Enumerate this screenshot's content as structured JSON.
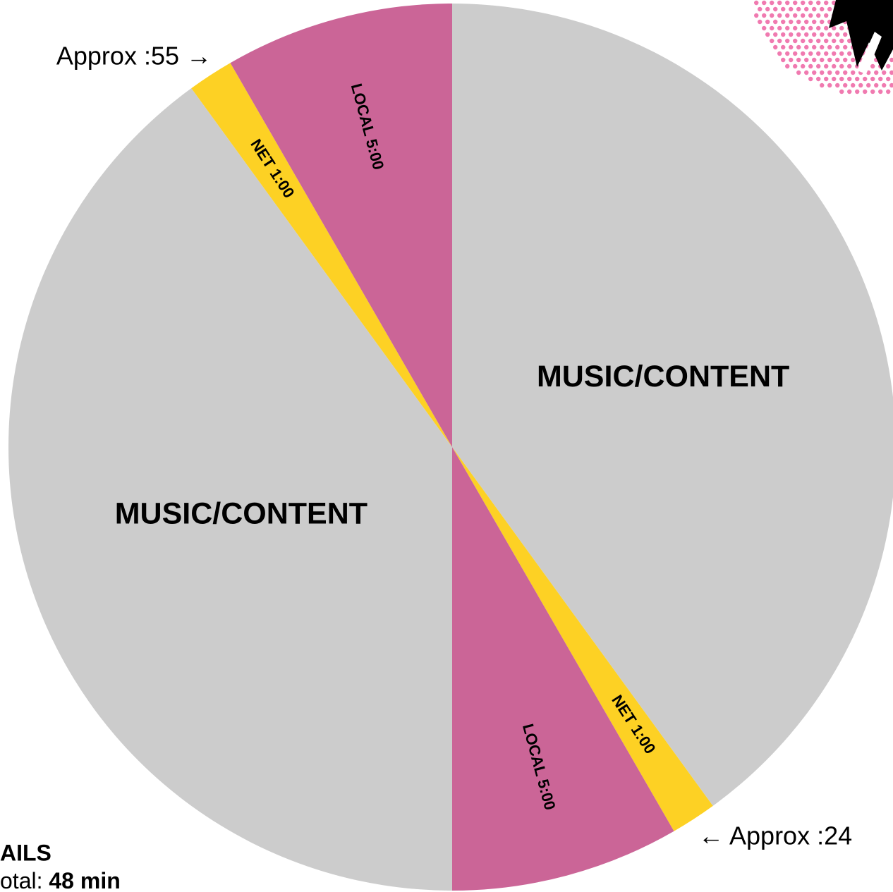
{
  "chart_data": {
    "type": "pie",
    "labels": [
      "MUSIC/CONTENT",
      "NET 1:00",
      "LOCAL 5:00",
      "MUSIC/CONTENT",
      "NET 1:00",
      "LOCAL 5:00"
    ],
    "values": [
      24,
      1,
      5,
      24,
      1,
      5
    ],
    "colors": [
      "#cccccc",
      "#fdd124",
      "#cb6597",
      "#cccccc",
      "#fdd124",
      "#cb6597"
    ],
    "annotations": [
      "Approx :55 →",
      "← Approx :24"
    ]
  },
  "footer": {
    "heading": "AILS",
    "total_label": "otal:",
    "total_value": "48 min"
  }
}
